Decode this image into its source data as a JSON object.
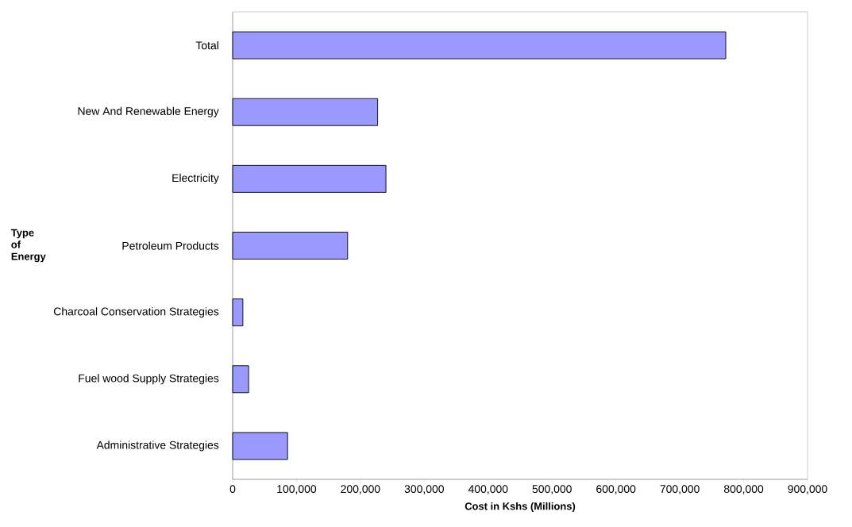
{
  "chart_data": {
    "type": "bar",
    "orientation": "horizontal",
    "xlabel": "Cost in Kshs (Millions)",
    "ylabel": "Type of Energy",
    "categories": [
      "Total",
      "New And Renewable Energy",
      "Electricity",
      "Petroleum Products",
      "Charcoal Conservation Strategies",
      "Fuel wood Supply Strategies",
      "Administrative Strategies"
    ],
    "values": [
      772000,
      227000,
      240000,
      180000,
      16000,
      25000,
      86000
    ],
    "color": "#9999ff",
    "xlim": [
      0,
      900000
    ],
    "xticks": [
      0,
      {
        "value": 100000,
        "label": "100,000"
      },
      {
        "value": 200000,
        "label": "200,000"
      },
      {
        "value": 300000,
        "label": "300,000"
      },
      {
        "value": 400000,
        "label": "400,000"
      },
      {
        "value": 500000,
        "label": "500,000"
      },
      {
        "value": 600000,
        "label": "600,000"
      },
      {
        "value": 700000,
        "label": "700,000"
      },
      {
        "value": 800000,
        "label": "800,000"
      },
      {
        "value": 900000,
        "label": "900,000"
      }
    ],
    "grid": false
  }
}
